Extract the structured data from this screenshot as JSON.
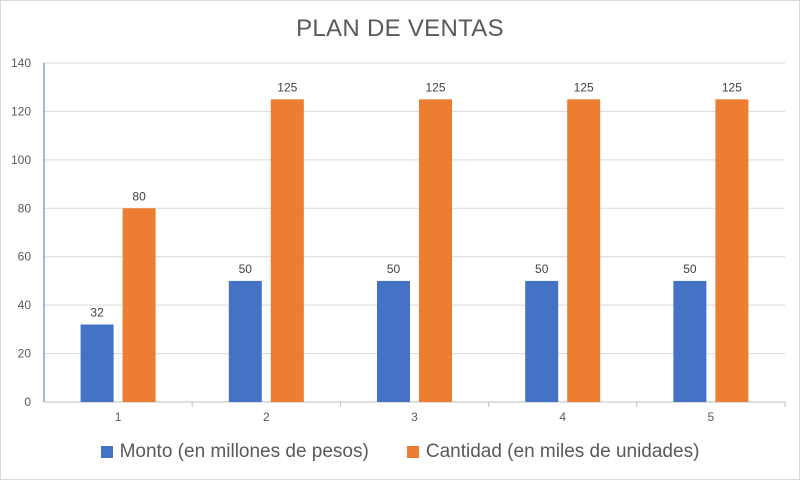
{
  "chart_data": {
    "type": "bar",
    "title": "PLAN DE VENTAS",
    "xlabel": "",
    "ylabel": "",
    "categories": [
      "1",
      "2",
      "3",
      "4",
      "5"
    ],
    "series": [
      {
        "name": "Monto (en millones de pesos)",
        "color": "#4472c4",
        "values": [
          32,
          50,
          50,
          50,
          50
        ]
      },
      {
        "name": "Cantidad (en miles de unidades)",
        "color": "#ed7d31",
        "values": [
          80,
          125,
          125,
          125,
          125
        ]
      }
    ],
    "ylim": [
      0,
      140
    ],
    "yticks": [
      0,
      20,
      40,
      60,
      80,
      100,
      120,
      140
    ],
    "grid": true,
    "legend_position": "bottom",
    "data_labels": true
  }
}
